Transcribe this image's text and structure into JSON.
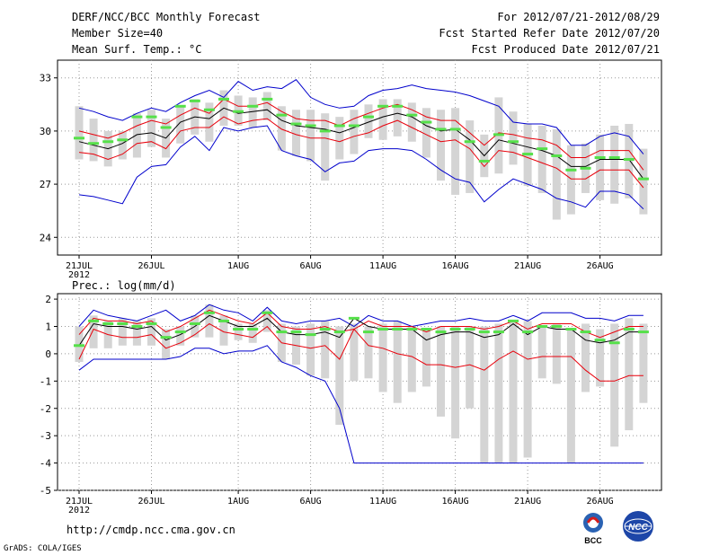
{
  "header": {
    "title": "DERF/NCC/BCC Monthly Forecast",
    "member_size": "Member Size=40",
    "variable": "Mean Surf. Temp.: °C",
    "forecast_period": "For 2012/07/21-2012/08/29",
    "started_refer_date": "Fcst Started Refer Date 2012/07/20",
    "produced_date": "Fcst Produced Date 2012/07/21"
  },
  "footer": {
    "url": "http://cmdp.ncc.cma.gov.cn",
    "grads": "GrADS: COLA/IGES",
    "logo_bcc": "BCC",
    "logo_ncc": "NCC"
  },
  "colors": {
    "bar": "#d4d4d4",
    "median": "#56e04a",
    "mean": "#000000",
    "std_band": "#e8000b",
    "envelope": "#0000cc",
    "grid": "#999999"
  },
  "chart_data": [
    {
      "type": "box-line",
      "title": "Mean Surf. Temp.: °C",
      "xlabel": "",
      "ylabel": "",
      "ylim": [
        23,
        34
      ],
      "yticks": [
        24,
        27,
        30,
        33
      ],
      "grid": true,
      "x_tick_labels": [
        "21JUL",
        "26JUL",
        "1AUG",
        "6AUG",
        "11AUG",
        "16AUG",
        "21AUG",
        "26AUG"
      ],
      "x_tick_days": [
        1,
        6,
        12,
        17,
        22,
        27,
        32,
        37
      ],
      "year_label": "2012",
      "days": 40,
      "series": [
        {
          "name": "ensemble max",
          "role": "envelope-upper",
          "values": [
            31.3,
            31.1,
            30.8,
            30.6,
            31.0,
            31.3,
            31.1,
            31.6,
            32.0,
            32.3,
            31.9,
            32.8,
            32.3,
            32.5,
            32.4,
            32.9,
            31.9,
            31.5,
            31.3,
            31.4,
            32.0,
            32.3,
            32.4,
            32.6,
            32.4,
            32.3,
            32.2,
            32.0,
            31.7,
            31.4,
            30.5,
            30.4,
            30.4,
            30.2,
            29.2,
            29.2,
            29.7,
            29.9,
            29.7,
            28.7
          ]
        },
        {
          "name": "mean + std",
          "role": "band-upper",
          "values": [
            30.0,
            29.8,
            29.6,
            29.9,
            30.3,
            30.6,
            30.4,
            30.9,
            31.3,
            31.0,
            31.8,
            31.4,
            31.4,
            31.6,
            31.1,
            30.7,
            30.6,
            30.6,
            30.3,
            30.7,
            31.0,
            31.3,
            31.5,
            31.2,
            30.8,
            30.6,
            30.6,
            29.9,
            29.2,
            29.9,
            29.8,
            29.6,
            29.5,
            29.2,
            28.5,
            28.5,
            28.9,
            28.9,
            28.9,
            27.8
          ]
        },
        {
          "name": "ensemble mean",
          "role": "mean",
          "values": [
            29.4,
            29.2,
            29.0,
            29.3,
            29.8,
            29.9,
            29.6,
            30.5,
            30.8,
            30.7,
            31.3,
            31.0,
            31.1,
            31.2,
            30.6,
            30.3,
            30.2,
            30.1,
            29.9,
            30.2,
            30.5,
            30.8,
            31.0,
            30.8,
            30.3,
            30.0,
            30.1,
            29.5,
            28.6,
            29.5,
            29.3,
            29.1,
            28.9,
            28.6,
            28.0,
            28.0,
            28.4,
            28.4,
            28.4,
            27.3
          ]
        },
        {
          "name": "mean - std",
          "role": "band-lower",
          "values": [
            28.8,
            28.7,
            28.4,
            28.7,
            29.3,
            29.4,
            29.0,
            30.0,
            30.2,
            30.2,
            30.8,
            30.4,
            30.6,
            30.7,
            30.1,
            29.8,
            29.6,
            29.6,
            29.4,
            29.7,
            29.9,
            30.3,
            30.6,
            30.2,
            29.8,
            29.4,
            29.5,
            29.0,
            28.0,
            28.9,
            28.8,
            28.5,
            28.2,
            27.9,
            27.3,
            27.3,
            27.8,
            27.8,
            27.8,
            26.8
          ]
        },
        {
          "name": "ensemble min",
          "role": "envelope-lower",
          "values": [
            26.4,
            26.3,
            26.1,
            25.9,
            27.4,
            28.0,
            28.1,
            29.1,
            29.7,
            28.9,
            30.2,
            30.0,
            30.2,
            30.3,
            28.9,
            28.6,
            28.4,
            27.7,
            28.2,
            28.3,
            28.9,
            29.0,
            29.0,
            28.9,
            28.4,
            27.8,
            27.3,
            27.1,
            26.0,
            26.7,
            27.3,
            27.0,
            26.7,
            26.2,
            26.0,
            25.7,
            26.6,
            26.6,
            26.4,
            25.6
          ]
        }
      ],
      "bars_top": [
        31.4,
        30.7,
        30.0,
        30.0,
        31.0,
        31.2,
        30.7,
        31.4,
        31.8,
        31.6,
        32.3,
        32.0,
        31.9,
        32.2,
        31.4,
        31.2,
        31.2,
        31.0,
        30.8,
        31.2,
        31.5,
        31.8,
        31.8,
        31.6,
        31.3,
        31.2,
        31.3,
        30.6,
        29.8,
        31.9,
        31.1,
        30.4,
        30.3,
        30.1,
        29.2,
        29.3,
        29.8,
        30.3,
        30.4,
        29.0
      ],
      "bars_bottom": [
        28.4,
        28.3,
        28.0,
        28.4,
        28.5,
        29.1,
        28.5,
        29.3,
        29.8,
        29.4,
        30.3,
        30.3,
        30.2,
        30.6,
        28.9,
        28.6,
        28.3,
        27.2,
        28.4,
        28.7,
        29.6,
        29.5,
        29.7,
        29.4,
        28.5,
        27.2,
        26.4,
        26.5,
        27.4,
        27.6,
        28.1,
        26.9,
        26.5,
        25.0,
        25.3,
        26.5,
        26.1,
        25.9,
        26.2,
        25.3
      ],
      "medians": [
        29.6,
        29.3,
        29.4,
        29.5,
        30.8,
        30.8,
        30.2,
        31.4,
        31.7,
        31.2,
        31.8,
        31.1,
        31.4,
        31.8,
        30.9,
        30.4,
        30.3,
        30.0,
        30.3,
        30.3,
        30.8,
        31.4,
        31.4,
        30.9,
        30.5,
        30.1,
        30.1,
        29.4,
        28.3,
        29.8,
        29.4,
        28.7,
        29.0,
        28.6,
        27.8,
        27.9,
        28.5,
        28.5,
        28.4,
        27.3
      ]
    },
    {
      "type": "box-line",
      "title": "Prec.: log(mm/d)",
      "xlabel": "",
      "ylabel": "",
      "ylim": [
        -5,
        2.2
      ],
      "yticks": [
        -5,
        -4,
        -3,
        -2,
        -1,
        0,
        1,
        2
      ],
      "grid": true,
      "x_tick_labels": [
        "21JUL",
        "26JUL",
        "1AUG",
        "6AUG",
        "11AUG",
        "16AUG",
        "21AUG",
        "26AUG"
      ],
      "x_tick_days": [
        1,
        6,
        12,
        17,
        22,
        27,
        32,
        37
      ],
      "year_label": "2012",
      "days": 40,
      "series": [
        {
          "name": "ensemble max",
          "role": "envelope-upper",
          "values": [
            1.0,
            1.6,
            1.4,
            1.3,
            1.2,
            1.4,
            1.6,
            1.2,
            1.4,
            1.8,
            1.6,
            1.5,
            1.2,
            1.7,
            1.2,
            1.1,
            1.2,
            1.2,
            1.3,
            1.0,
            1.4,
            1.2,
            1.2,
            1.0,
            1.1,
            1.2,
            1.2,
            1.3,
            1.2,
            1.2,
            1.4,
            1.2,
            1.5,
            1.5,
            1.5,
            1.3,
            1.3,
            1.2,
            1.4,
            1.4
          ]
        },
        {
          "name": "mean + std",
          "role": "band-upper",
          "values": [
            0.7,
            1.3,
            1.2,
            1.2,
            1.1,
            1.2,
            0.8,
            1.0,
            1.3,
            1.6,
            1.4,
            1.2,
            1.1,
            1.5,
            1.0,
            0.9,
            0.9,
            1.0,
            0.8,
            0.9,
            1.2,
            1.0,
            1.0,
            1.0,
            0.8,
            1.0,
            1.0,
            1.0,
            0.9,
            1.0,
            1.2,
            0.9,
            1.1,
            1.1,
            1.1,
            0.8,
            0.6,
            0.8,
            1.0,
            1.0
          ]
        },
        {
          "name": "ensemble mean",
          "role": "mean",
          "values": [
            0.3,
            1.1,
            1.0,
            1.0,
            0.9,
            1.0,
            0.5,
            0.7,
            1.0,
            1.4,
            1.2,
            1.0,
            1.0,
            1.3,
            0.8,
            0.7,
            0.7,
            0.8,
            0.6,
            1.3,
            1.0,
            0.9,
            0.9,
            0.9,
            0.5,
            0.7,
            0.8,
            0.8,
            0.6,
            0.7,
            1.1,
            0.7,
            1.0,
            0.9,
            0.9,
            0.5,
            0.4,
            0.5,
            0.8,
            0.8
          ]
        },
        {
          "name": "mean - std",
          "role": "band-lower",
          "values": [
            -0.2,
            0.9,
            0.7,
            0.6,
            0.6,
            0.7,
            0.2,
            0.4,
            0.7,
            1.1,
            0.8,
            0.7,
            0.6,
            1.0,
            0.4,
            0.3,
            0.2,
            0.3,
            -0.2,
            0.9,
            0.3,
            0.2,
            0.0,
            -0.1,
            -0.4,
            -0.4,
            -0.5,
            -0.4,
            -0.6,
            -0.2,
            0.1,
            -0.2,
            -0.1,
            -0.1,
            -0.1,
            -0.6,
            -1.0,
            -1.0,
            -0.8,
            -0.8
          ]
        },
        {
          "name": "ensemble min",
          "role": "envelope-lower",
          "values": [
            -0.6,
            -0.2,
            -0.2,
            -0.2,
            -0.2,
            -0.2,
            -0.2,
            -0.1,
            0.2,
            0.2,
            0.0,
            0.1,
            0.1,
            0.3,
            -0.3,
            -0.5,
            -0.8,
            -1.0,
            -2.0,
            -4.0,
            -4.0,
            -4.0,
            -4.0,
            -4.0,
            -4.0,
            -4.0,
            -4.0,
            -4.0,
            -4.0,
            -4.0,
            -4.0,
            -4.0,
            -4.0,
            -4.0,
            -4.0,
            -4.0,
            -4.0,
            -4.0,
            -4.0,
            -4.0
          ]
        }
      ],
      "bars_top": [
        1.0,
        1.4,
        1.2,
        1.3,
        1.2,
        1.3,
        0.9,
        1.0,
        1.4,
        1.8,
        1.4,
        1.1,
        1.1,
        1.6,
        1.1,
        1.0,
        1.1,
        1.2,
        1.0,
        1.1,
        1.0,
        1.1,
        1.2,
        1.0,
        0.9,
        1.0,
        1.0,
        1.0,
        1.0,
        1.1,
        1.2,
        1.2,
        1.0,
        1.1,
        0.9,
        1.1,
        0.9,
        1.1,
        1.3,
        1.1
      ],
      "bars_bottom": [
        -0.3,
        0.2,
        0.2,
        0.3,
        0.3,
        0.3,
        -0.2,
        0.3,
        0.6,
        0.6,
        0.3,
        0.5,
        0.4,
        0.8,
        -0.3,
        -0.4,
        -0.8,
        -0.9,
        -2.6,
        -1.0,
        -0.9,
        -1.4,
        -1.8,
        -1.4,
        -1.2,
        -2.3,
        -3.1,
        -2.0,
        -4.0,
        -4.0,
        -4.0,
        -3.8,
        -0.9,
        -1.1,
        -4.0,
        -1.4,
        -1.2,
        -3.4,
        -2.8,
        -1.8
      ],
      "medians": [
        0.3,
        1.2,
        1.1,
        1.1,
        1.0,
        1.1,
        0.6,
        0.8,
        1.1,
        1.5,
        1.2,
        0.9,
        0.9,
        1.5,
        0.8,
        0.8,
        0.7,
        0.9,
        0.8,
        1.3,
        0.8,
        0.9,
        0.9,
        0.9,
        0.9,
        0.8,
        0.9,
        0.9,
        0.8,
        0.8,
        1.2,
        0.8,
        1.0,
        1.0,
        0.9,
        0.8,
        0.5,
        0.4,
        0.9,
        0.8
      ]
    }
  ]
}
